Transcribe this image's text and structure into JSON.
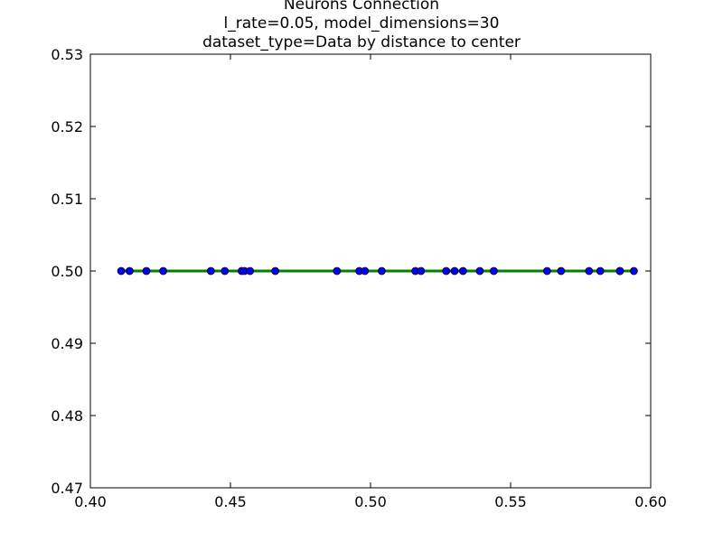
{
  "chart_data": {
    "type": "line",
    "title": [
      "Neurons Connection",
      "l_rate=0.05, model_dimensions=30",
      "dataset_type=Data by distance to center"
    ],
    "xlabel": "",
    "ylabel": "",
    "xlim": [
      0.4,
      0.6
    ],
    "ylim": [
      0.47,
      0.53
    ],
    "x_ticks": [
      "0.40",
      "0.45",
      "0.50",
      "0.55",
      "0.60"
    ],
    "y_ticks": [
      "0.47",
      "0.48",
      "0.49",
      "0.50",
      "0.51",
      "0.52",
      "0.53"
    ],
    "grid": false,
    "legend": "none",
    "series": [
      {
        "color": "#008000",
        "marker": "circle",
        "marker_color": "#0000ff",
        "x": [
          0.411,
          0.414,
          0.42,
          0.426,
          0.443,
          0.448,
          0.454,
          0.455,
          0.457,
          0.466,
          0.488,
          0.496,
          0.498,
          0.504,
          0.516,
          0.518,
          0.527,
          0.53,
          0.533,
          0.539,
          0.544,
          0.563,
          0.568,
          0.578,
          0.582,
          0.589,
          0.589,
          0.594
        ],
        "y": [
          0.5,
          0.5,
          0.5,
          0.5,
          0.5,
          0.5,
          0.5,
          0.5,
          0.5,
          0.5,
          0.5,
          0.5,
          0.5,
          0.5,
          0.5,
          0.5,
          0.5,
          0.5,
          0.5,
          0.5,
          0.5,
          0.5,
          0.5,
          0.5,
          0.5,
          0.5,
          0.5,
          0.5
        ]
      }
    ]
  }
}
